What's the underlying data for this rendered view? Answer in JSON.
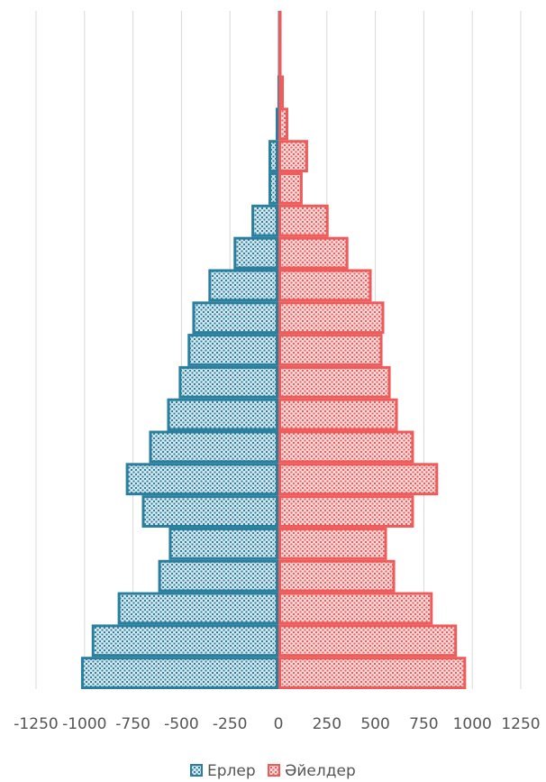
{
  "chart_data": {
    "type": "pyramid",
    "series": [
      {
        "name": "Ерлер",
        "color": "#2a7f9e",
        "values": [
          -1018,
          -963,
          -829,
          -620,
          -565,
          -704,
          -787,
          -667,
          -574,
          -514,
          -468,
          -444,
          -361,
          -231,
          -139,
          -51,
          -51,
          -14,
          -5,
          -2,
          -2
        ]
      },
      {
        "name": "Әйелдер",
        "color": "#ee5b5b",
        "values": [
          968,
          921,
          796,
          602,
          560,
          699,
          824,
          699,
          616,
          579,
          537,
          546,
          481,
          361,
          259,
          125,
          153,
          51,
          28,
          10,
          8
        ]
      }
    ],
    "xlim": [
      -1250,
      1250
    ],
    "xticks": [
      -1250,
      -1000,
      -750,
      -500,
      -250,
      0,
      250,
      500,
      750,
      1000,
      1250
    ],
    "grid": true,
    "legend": "bottom"
  }
}
